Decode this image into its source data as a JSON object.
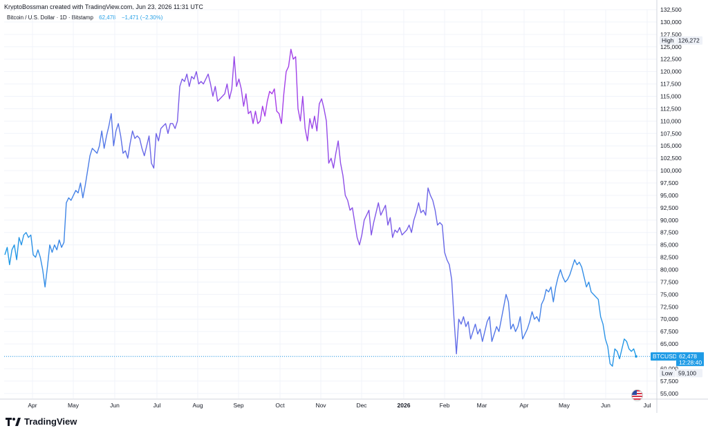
{
  "header": {
    "credit": "KryptoBossman created with TradingView.com, Jun 23, 2026 11:31 UTC",
    "symbol_line": "Bitcoin / U.S. Dollar · 1D · Bitstamp",
    "last_price": "62,478",
    "change": "−1,471 (−2.30%)"
  },
  "brand": {
    "name": "TradingView",
    "icon": "tradingview-logo-icon"
  },
  "markers": {
    "flag_icon": "us-flag-icon"
  },
  "colors": {
    "line_start": "#a93ae8",
    "line_end": "#1e9be6",
    "badge": "#1e9be6"
  },
  "chart_data": {
    "type": "line",
    "y_axis": {
      "side": "right",
      "ylim": [
        54000,
        132500
      ],
      "ticks": [
        "55,000",
        "57,500",
        "60,000",
        "62,500",
        "65,000",
        "67,500",
        "70,000",
        "72,500",
        "75,000",
        "77,500",
        "80,000",
        "82,500",
        "85,000",
        "87,500",
        "90,000",
        "92,500",
        "95,000",
        "97,500",
        "100,000",
        "102,500",
        "105,000",
        "107,500",
        "110,000",
        "112,500",
        "115,000",
        "117,500",
        "120,000",
        "122,500",
        "125,000",
        "127,500",
        "130,000",
        "132,500"
      ]
    },
    "x_axis": {
      "ticks": [
        "Apr",
        "May",
        "Jun",
        "Jul",
        "Aug",
        "Sep",
        "Oct",
        "Nov",
        "Dec",
        "2026",
        "Feb",
        "Mar",
        "Apr",
        "May",
        "Jun",
        "Jul"
      ]
    },
    "grid": true,
    "series": [
      {
        "values": [
          83000,
          84500,
          81000,
          84000,
          85000,
          82000,
          86500,
          85000,
          87000,
          87500,
          86500,
          87000,
          83000,
          82500,
          84000,
          82500,
          80000,
          76500,
          80500,
          85000,
          83500,
          85000,
          84000,
          86000,
          84500,
          85500,
          93500,
          94500,
          94000,
          95000,
          96000,
          95500,
          97500,
          94500,
          97000,
          100000,
          103000,
          104500,
          104000,
          103500,
          105000,
          108000,
          104500,
          107000,
          109000,
          111500,
          105000,
          108000,
          109500,
          107000,
          103500,
          104000,
          102500,
          105500,
          108000,
          106500,
          107000,
          106500,
          104500,
          103000,
          105000,
          107000,
          101500,
          100500,
          107500,
          106000,
          108500,
          109000,
          109500,
          107500,
          109500,
          109500,
          108500,
          110000,
          117000,
          118500,
          118000,
          119500,
          117000,
          119000,
          118500,
          120000,
          117500,
          118000,
          117500,
          118500,
          119500,
          117500,
          115000,
          117000,
          114000,
          114500,
          115000,
          115500,
          117500,
          114500,
          116500,
          123000,
          117000,
          118500,
          116500,
          113000,
          115500,
          111500,
          112000,
          109500,
          112000,
          109500,
          110000,
          113000,
          111000,
          114000,
          116000,
          115500,
          116500,
          112000,
          111500,
          109500,
          115500,
          120000,
          121000,
          124500,
          122500,
          123000,
          112500,
          110000,
          115000,
          108500,
          106000,
          110500,
          108500,
          111000,
          108000,
          113500,
          114500,
          112500,
          110000,
          101500,
          102500,
          100500,
          103500,
          106000,
          101500,
          99000,
          95000,
          94000,
          92000,
          92500,
          89500,
          86500,
          85000,
          87000,
          90000,
          91000,
          92000,
          87000,
          89500,
          91500,
          93500,
          91000,
          92000,
          93000,
          89000,
          90500,
          86500,
          88000,
          87500,
          88500,
          87000,
          87500,
          88000,
          89000,
          87500,
          90000,
          91500,
          93500,
          91500,
          92000,
          91000,
          96500,
          95000,
          94000,
          92000,
          89000,
          89500,
          89000,
          83500,
          82000,
          81000,
          78000,
          70000,
          63000,
          70000,
          69000,
          70500,
          68500,
          69500,
          66000,
          67500,
          69000,
          67000,
          68000,
          65500,
          67500,
          69500,
          70500,
          65500,
          67000,
          68500,
          67500,
          70000,
          72500,
          75000,
          73500,
          68000,
          69000,
          67500,
          68500,
          70500,
          66000,
          67000,
          68000,
          69500,
          71500,
          70000,
          70500,
          69500,
          73000,
          74000,
          76000,
          75500,
          76500,
          73500,
          76500,
          78500,
          80000,
          78500,
          77500,
          78000,
          79000,
          80500,
          82000,
          81000,
          81500,
          80500,
          78500,
          76500,
          77500,
          75500,
          75000,
          74500,
          74000,
          70500,
          69000,
          66000,
          64500,
          61000,
          60500,
          64000,
          63500,
          62000,
          64000,
          66000,
          65500,
          64000,
          63500,
          64000,
          62478
        ]
      }
    ],
    "annotations": [
      {
        "label": "High",
        "value": "126,272"
      },
      {
        "label": "Low",
        "value": "59,100"
      },
      {
        "label": "BTCUSD",
        "value": "62,478",
        "sub": "12:28:40"
      }
    ]
  }
}
